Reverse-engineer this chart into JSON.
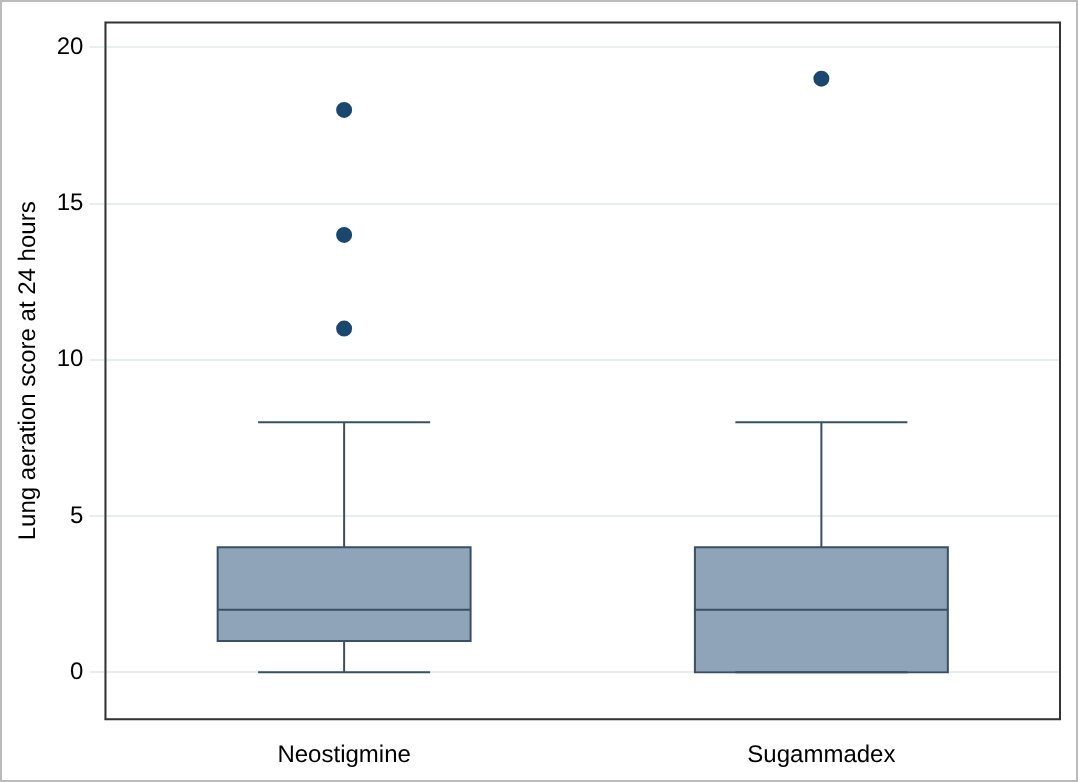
{
  "chart_data": {
    "type": "box",
    "ylabel": "Lung aeration score at 24 hours",
    "categories": [
      "Neostigmine",
      "Sugammadex"
    ],
    "color": "#8fa3b9",
    "boxes": [
      {
        "low": 0,
        "q1": 1,
        "median": 2,
        "q3": 4,
        "high": 8,
        "outliers": [
          11,
          14,
          18
        ]
      },
      {
        "low": 0,
        "q1": 0,
        "median": 2,
        "q3": 4,
        "high": 8,
        "outliers": [
          19
        ]
      }
    ],
    "ylim": [
      -1.5,
      20.8
    ],
    "yticks": [
      0,
      5,
      10,
      15,
      20
    ],
    "grid": "y",
    "legend": false
  }
}
